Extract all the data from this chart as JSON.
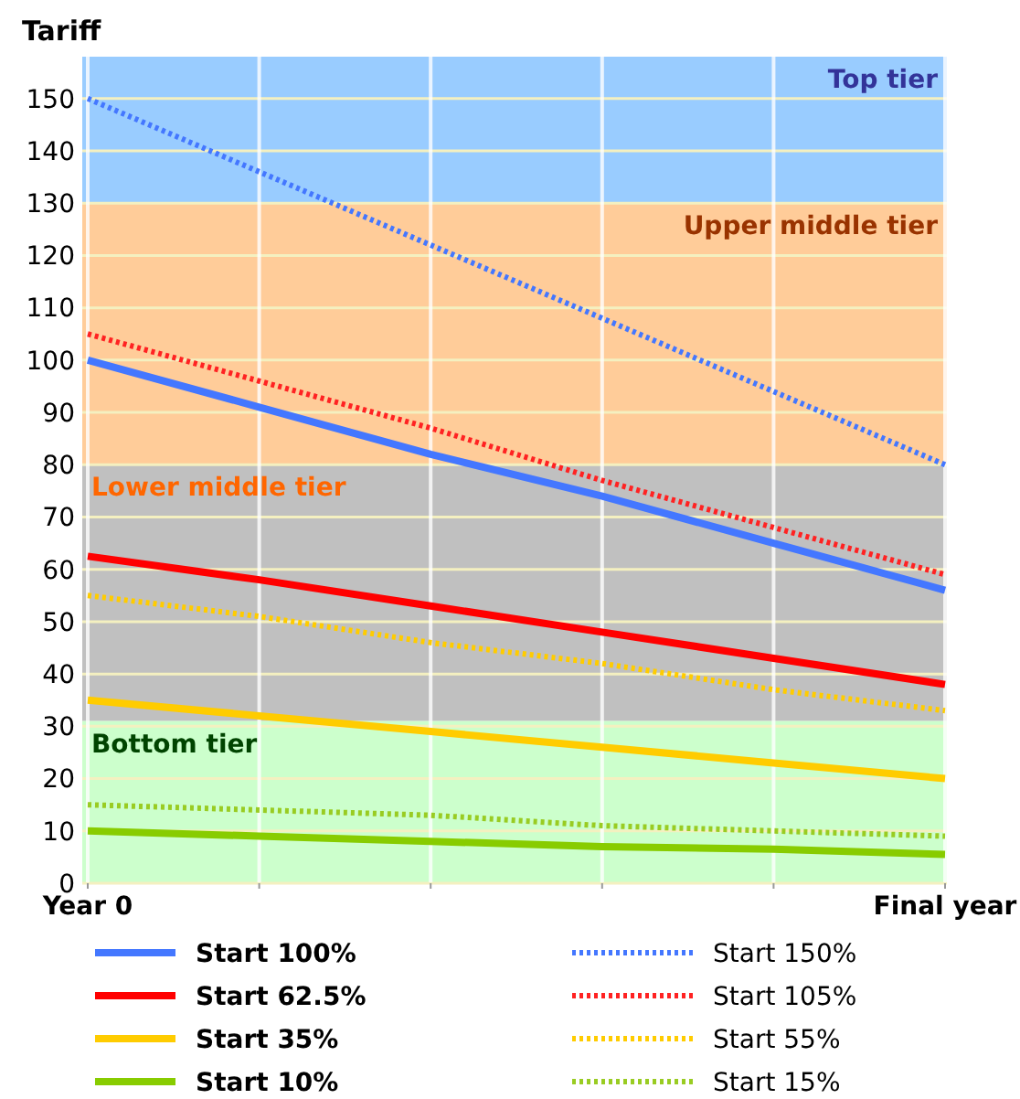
{
  "chart_data": {
    "type": "line",
    "ylabel": "Tariff",
    "categories": [
      "Year 0",
      null,
      null,
      null,
      null,
      "Final year"
    ],
    "ylim": [
      0,
      158
    ],
    "yticks": [
      0,
      10,
      20,
      30,
      40,
      50,
      60,
      70,
      80,
      90,
      100,
      110,
      120,
      130,
      140,
      150
    ],
    "grid": true,
    "legend": "bottom",
    "bands": [
      {
        "axis": "y",
        "from": 130,
        "to": 158,
        "label": "Top tier",
        "color": "#99ccff"
      },
      {
        "axis": "y",
        "from": 80,
        "to": 130,
        "label": "Upper middle tier",
        "color": "#ffcc99"
      },
      {
        "axis": "y",
        "from": 31,
        "to": 80,
        "label": "Lower middle tier",
        "color": "#c0c0c0"
      },
      {
        "axis": "y",
        "from": 0,
        "to": 31,
        "label": "Bottom tier",
        "color": "#ccffcc"
      }
    ],
    "series": [
      {
        "name": "Start 100%",
        "color": "#4477ff",
        "values": [
          100,
          91,
          82,
          74,
          65,
          56
        ],
        "line_style": "solid"
      },
      {
        "name": "Start 62.5%",
        "color": "#ff0000",
        "values": [
          62.5,
          58,
          53,
          48,
          43,
          38
        ],
        "line_style": "solid"
      },
      {
        "name": "Start 35%",
        "color": "#ffcc00",
        "values": [
          35,
          32,
          29,
          26,
          23,
          20
        ],
        "line_style": "solid"
      },
      {
        "name": "Start 10%",
        "color": "#88cc00",
        "values": [
          10,
          9,
          8,
          7,
          6.5,
          5.5
        ],
        "line_style": "solid"
      },
      {
        "name": "Start 150%",
        "color": "#4477ff",
        "values": [
          150,
          136,
          122,
          108,
          94,
          80
        ],
        "line_style": "dotted"
      },
      {
        "name": "Start 105%",
        "color": "#ff2222",
        "values": [
          105,
          96,
          87,
          77,
          68,
          59
        ],
        "line_style": "dotted"
      },
      {
        "name": "Start 55%",
        "color": "#ffcc00",
        "values": [
          55,
          51,
          46,
          42,
          37,
          33
        ],
        "line_style": "dotted"
      },
      {
        "name": "Start 15%",
        "color": "#99cc22",
        "values": [
          15,
          14,
          13,
          11,
          10,
          9
        ],
        "line_style": "dotted"
      }
    ]
  }
}
